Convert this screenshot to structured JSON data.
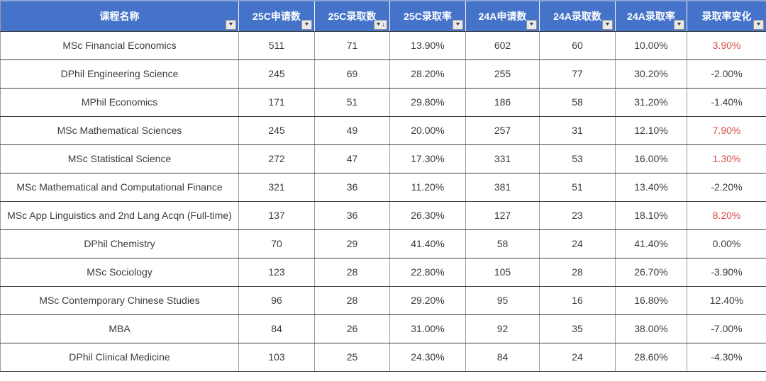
{
  "table": {
    "columns": [
      {
        "key": "course_name",
        "label": "课程名称",
        "sorted": false
      },
      {
        "key": "c25_applications",
        "label": "25C申请数",
        "sorted": false
      },
      {
        "key": "c25_admissions",
        "label": "25C录取数",
        "sorted": true
      },
      {
        "key": "c25_rate",
        "label": "25C录取率",
        "sorted": false
      },
      {
        "key": "a24_applications",
        "label": "24A申请数",
        "sorted": false
      },
      {
        "key": "a24_admissions",
        "label": "24A录取数",
        "sorted": false
      },
      {
        "key": "a24_rate",
        "label": "24A录取率",
        "sorted": false
      },
      {
        "key": "rate_change",
        "label": "录取率变化",
        "sorted": false
      }
    ],
    "rows": [
      {
        "cells": [
          "MSc Financial Economics",
          "511",
          "71",
          "13.90%",
          "602",
          "60",
          "10.00%",
          "3.90%"
        ],
        "change_red": true
      },
      {
        "cells": [
          "DPhil Engineering Science",
          "245",
          "69",
          "28.20%",
          "255",
          "77",
          "30.20%",
          "-2.00%"
        ],
        "change_red": false
      },
      {
        "cells": [
          "MPhil Economics",
          "171",
          "51",
          "29.80%",
          "186",
          "58",
          "31.20%",
          "-1.40%"
        ],
        "change_red": false
      },
      {
        "cells": [
          "MSc Mathematical Sciences",
          "245",
          "49",
          "20.00%",
          "257",
          "31",
          "12.10%",
          "7.90%"
        ],
        "change_red": true
      },
      {
        "cells": [
          "MSc Statistical Science",
          "272",
          "47",
          "17.30%",
          "331",
          "53",
          "16.00%",
          "1.30%"
        ],
        "change_red": true
      },
      {
        "cells": [
          "MSc Mathematical and Computational Finance",
          "321",
          "36",
          "11.20%",
          "381",
          "51",
          "13.40%",
          "-2.20%"
        ],
        "change_red": false
      },
      {
        "cells": [
          "MSc App Linguistics and 2nd Lang Acqn (Full-time)",
          "137",
          "36",
          "26.30%",
          "127",
          "23",
          "18.10%",
          "8.20%"
        ],
        "change_red": true
      },
      {
        "cells": [
          "DPhil Chemistry",
          "70",
          "29",
          "41.40%",
          "58",
          "24",
          "41.40%",
          "0.00%"
        ],
        "change_red": false
      },
      {
        "cells": [
          "MSc Sociology",
          "123",
          "28",
          "22.80%",
          "105",
          "28",
          "26.70%",
          "-3.90%"
        ],
        "change_red": false
      },
      {
        "cells": [
          "MSc Contemporary Chinese Studies",
          "96",
          "28",
          "29.20%",
          "95",
          "16",
          "16.80%",
          "12.40%"
        ],
        "change_red": false
      },
      {
        "cells": [
          "MBA",
          "84",
          "26",
          "31.00%",
          "92",
          "35",
          "38.00%",
          "-7.00%"
        ],
        "change_red": false
      },
      {
        "cells": [
          "DPhil Clinical Medicine",
          "103",
          "25",
          "24.30%",
          "84",
          "24",
          "28.60%",
          "-4.30%"
        ],
        "change_red": false
      }
    ]
  },
  "icons": {
    "filter_dropdown": "▼",
    "sort_descending": "↓"
  },
  "colors": {
    "header_bg": "#4573c9",
    "header_text": "#ffffff",
    "row_text": "#3b3b3b",
    "negative_or_default_change_text": "#3b3b3b",
    "highlighted_change_text": "#d94b45",
    "horizontal_border": "#3f3f3f",
    "vertical_border": "#9c9c9c"
  }
}
